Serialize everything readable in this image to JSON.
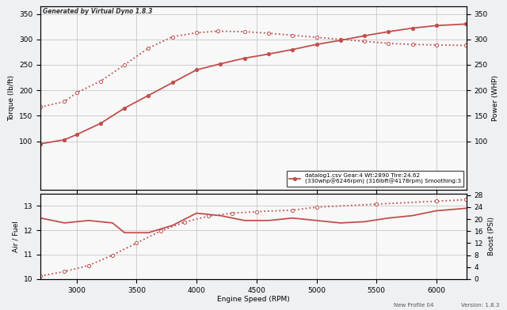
{
  "chart_data": [
    {
      "type": "line",
      "title": "Generated by Virtual Dyno 1.8.3",
      "ylabel": "Torque (lb/ft)",
      "y2label": "Power (WHP)",
      "xlim": [
        2700,
        6250
      ],
      "xticks": [
        3000,
        3500,
        4000,
        4500,
        5000,
        5500,
        6000
      ],
      "ylim": [
        5,
        365
      ],
      "yticks": [
        100,
        150,
        200,
        250,
        300,
        350
      ],
      "y2lim": [
        5,
        365
      ],
      "y2ticks": [
        100,
        150,
        200,
        250,
        300,
        350
      ],
      "grid": true,
      "tick_labels": "y",
      "legend": "lower right",
      "series": [
        {
          "color": "#c0504d",
          "line_style": "dotted",
          "marker": "o",
          "x": [
            2700,
            2900,
            3000,
            3200,
            3400,
            3600,
            3800,
            4000,
            4178,
            4400,
            4600,
            4800,
            5000,
            5200,
            5400,
            5600,
            5800,
            6000,
            6246
          ],
          "values": [
            167,
            178,
            195,
            218,
            250,
            283,
            305,
            313,
            316,
            315,
            312,
            308,
            304,
            300,
            296,
            292,
            290,
            289,
            288
          ]
        },
        {
          "name": "datalog1.csv Gear:4 Wt:2890 Tire:24.62\n(330whp@6246rpm) (316lbft@4178rpm) Smoothing:3",
          "color": "#c0504d",
          "line_style": "solid",
          "marker": "o",
          "axis": "y2",
          "x": [
            2700,
            2900,
            3000,
            3200,
            3400,
            3600,
            3800,
            4000,
            4200,
            4400,
            4600,
            4800,
            5000,
            5200,
            5400,
            5600,
            5800,
            6000,
            6246
          ],
          "values": [
            95,
            103,
            113,
            135,
            165,
            190,
            215,
            240,
            252,
            263,
            271,
            280,
            290,
            298,
            307,
            315,
            322,
            327,
            330
          ]
        }
      ]
    },
    {
      "type": "line",
      "xlabel": "Engine Speed (RPM)",
      "ylabel": "Air / Fuel",
      "y2label": "Boost (PSI)",
      "xlim": [
        2700,
        6250
      ],
      "xticks": [
        3000,
        3500,
        4000,
        4500,
        5000,
        5500,
        6000
      ],
      "ylim": [
        10,
        13.5
      ],
      "yticks": [
        10,
        11,
        12,
        13
      ],
      "y2lim": [
        0,
        28.5
      ],
      "y2ticks": [
        0,
        4,
        8,
        12,
        16,
        20,
        24,
        28
      ],
      "grid": true,
      "annotations": [
        "New Profile 04",
        "Version: 1.8.3"
      ],
      "series": [
        {
          "color": "#c0504d",
          "line_style": "solid",
          "marker": "none",
          "x": [
            2700,
            2900,
            3100,
            3300,
            3400,
            3600,
            3800,
            4000,
            4200,
            4400,
            4600,
            4800,
            5000,
            5200,
            5400,
            5600,
            5800,
            6000,
            6246
          ],
          "values": [
            12.5,
            12.3,
            12.4,
            12.3,
            11.9,
            11.9,
            12.2,
            12.7,
            12.6,
            12.4,
            12.4,
            12.5,
            12.4,
            12.3,
            12.35,
            12.5,
            12.6,
            12.8,
            12.9
          ]
        },
        {
          "color": "#c0504d",
          "line_style": "dotted",
          "marker": "o",
          "axis": "y2",
          "x": [
            2700,
            2900,
            3100,
            3300,
            3500,
            3700,
            3900,
            4100,
            4300,
            4500,
            4800,
            5000,
            5500,
            6000,
            6246
          ],
          "values": [
            1,
            2.5,
            4.5,
            8,
            12,
            16,
            19,
            21,
            22,
            22.5,
            23,
            24,
            25,
            26,
            26.5
          ]
        }
      ]
    }
  ]
}
